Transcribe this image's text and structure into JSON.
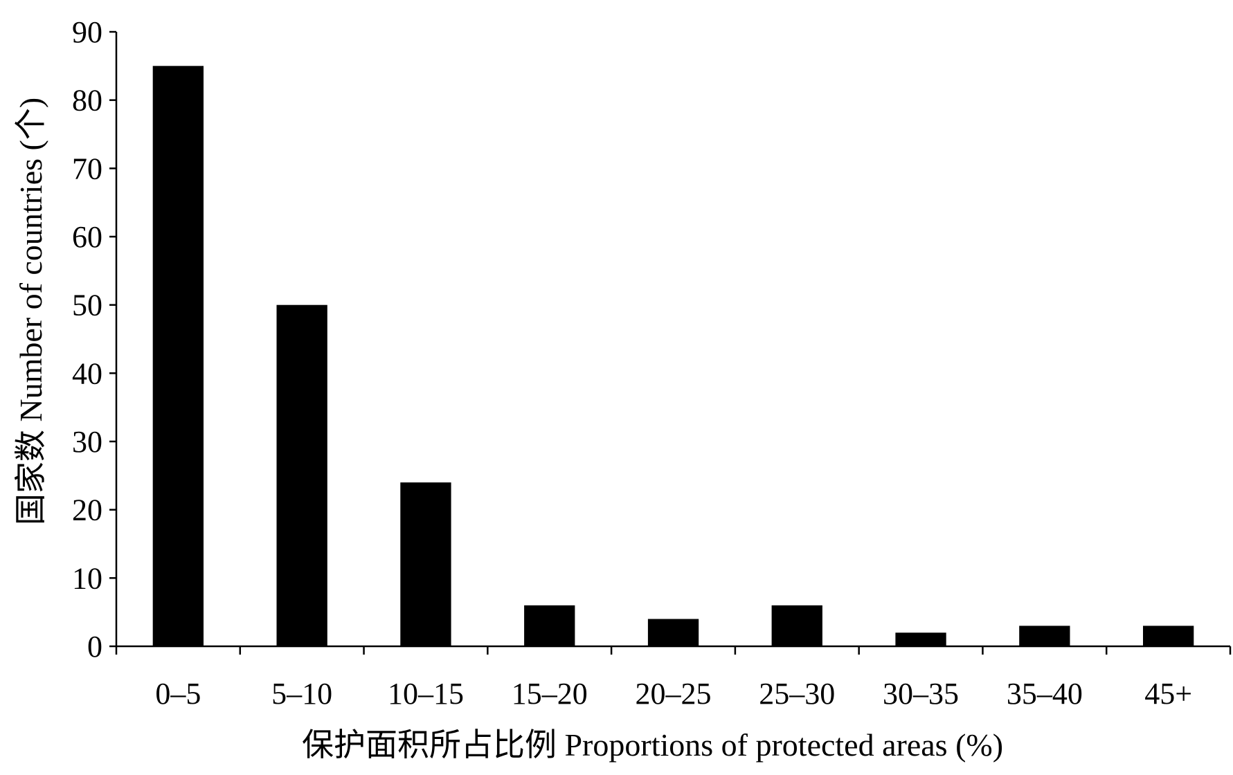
{
  "colors": {
    "bar": "#000000",
    "axis": "#000000",
    "background": "#ffffff"
  },
  "chart_data": {
    "type": "bar",
    "title": "",
    "xlabel": "保护面积所占比例 Proportions of protected areas (%)",
    "ylabel": "国家数 Number of countries (个)",
    "categories": [
      "0–5",
      "5–10",
      "10–15",
      "15–20",
      "20–25",
      "25–30",
      "30–35",
      "35–40",
      "45+"
    ],
    "values": [
      85,
      50,
      24,
      6,
      4,
      6,
      2,
      3,
      3
    ],
    "ylim": [
      0,
      90
    ],
    "yticks": [
      0,
      10,
      20,
      30,
      40,
      50,
      60,
      70,
      80,
      90
    ],
    "grid": false,
    "legend": "none"
  }
}
